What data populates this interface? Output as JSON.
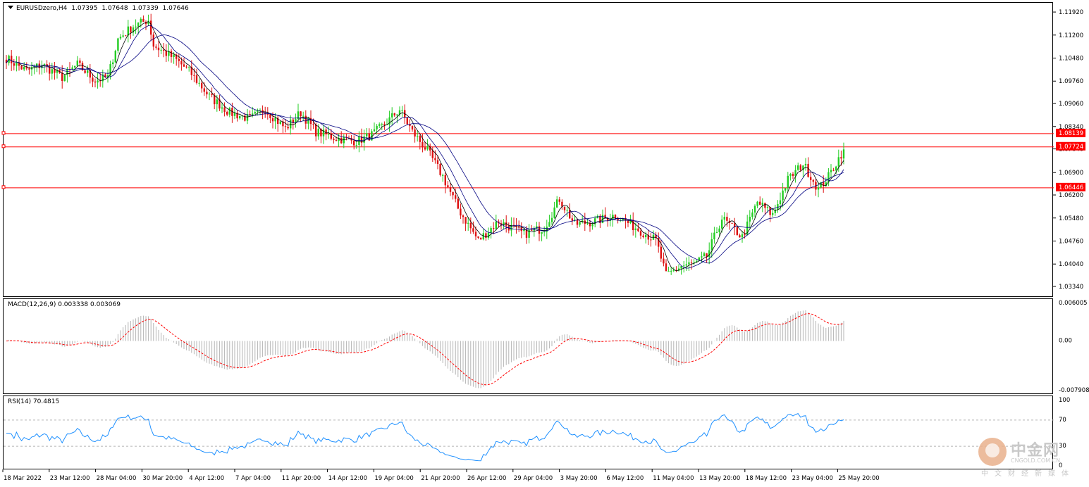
{
  "header": {
    "symbol": "EURUSDzero,H4",
    "open": "1.07395",
    "high": "1.07648",
    "low": "1.07339",
    "close": "1.07646"
  },
  "macd_label": "MACD(12,26,9) 0.003338 0.003069",
  "rsi_label": "RSI(14) 70.4815",
  "price_axis": [
    "1.11920",
    "1.11200",
    "1.10480",
    "1.09760",
    "1.09060",
    "1.08340",
    "1.07640",
    "1.06900",
    "1.06200",
    "1.05480",
    "1.04760",
    "1.04040",
    "1.03340"
  ],
  "macd_axis": [
    "0.006005",
    "0.00",
    "-0.007908"
  ],
  "rsi_axis": [
    "100",
    "70",
    "30",
    "0"
  ],
  "time_labels": [
    "18 Mar 2022",
    "23 Mar 12:00",
    "28 Mar 04:00",
    "30 Mar 20:00",
    "4 Apr 12:00",
    "7 Apr 04:00",
    "11 Apr 20:00",
    "14 Apr 12:00",
    "19 Apr 04:00",
    "21 Apr 20:00",
    "26 Apr 12:00",
    "29 Apr 04:00",
    "3 May 20:00",
    "6 May 12:00",
    "11 May 04:00",
    "13 May 20:00",
    "18 May 12:00",
    "23 May 04:00",
    "25 May 20:00"
  ],
  "price_levels": [
    {
      "label": "1.08139",
      "value": 1.08139
    },
    {
      "label": "1.07724",
      "value": 1.07724
    },
    {
      "label": "1.06446",
      "value": 1.06446
    }
  ],
  "logo": {
    "brand": "中金网",
    "url": "CNGOLD.COM.CN",
    "tag": "中文财经新媒体"
  },
  "colors": {
    "bull": "#22cc22",
    "bear": "#dd1111",
    "level": "#ff0000",
    "ma": "#000080",
    "macd_hist": "#b4b4b4",
    "macd_signal": "#ff0000",
    "rsi": "#1e90ff"
  },
  "chart_data": [
    {
      "type": "candlestick",
      "title": "EURUSDzero,H4",
      "ylim": [
        1.0301,
        1.1223
      ],
      "waypoints": [
        {
          "t": 0,
          "p": 1.105
        },
        {
          "t": 8,
          "p": 1.101
        },
        {
          "t": 14,
          "p": 1.103
        },
        {
          "t": 22,
          "p": 1.099
        },
        {
          "t": 28,
          "p": 1.103
        },
        {
          "t": 35,
          "p": 1.098
        },
        {
          "t": 40,
          "p": 1.099
        },
        {
          "t": 44,
          "p": 1.111
        },
        {
          "t": 50,
          "p": 1.115
        },
        {
          "t": 56,
          "p": 1.117
        },
        {
          "t": 58,
          "p": 1.109
        },
        {
          "t": 66,
          "p": 1.105
        },
        {
          "t": 72,
          "p": 1.101
        },
        {
          "t": 80,
          "p": 1.093
        },
        {
          "t": 88,
          "p": 1.088
        },
        {
          "t": 96,
          "p": 1.086
        },
        {
          "t": 102,
          "p": 1.089
        },
        {
          "t": 110,
          "p": 1.083
        },
        {
          "t": 116,
          "p": 1.088
        },
        {
          "t": 122,
          "p": 1.082
        },
        {
          "t": 130,
          "p": 1.08
        },
        {
          "t": 138,
          "p": 1.079
        },
        {
          "t": 144,
          "p": 1.081
        },
        {
          "t": 150,
          "p": 1.085
        },
        {
          "t": 155,
          "p": 1.089
        },
        {
          "t": 160,
          "p": 1.082
        },
        {
          "t": 166,
          "p": 1.076
        },
        {
          "t": 172,
          "p": 1.068
        },
        {
          "t": 178,
          "p": 1.058
        },
        {
          "t": 186,
          "p": 1.048
        },
        {
          "t": 194,
          "p": 1.054
        },
        {
          "t": 204,
          "p": 1.05
        },
        {
          "t": 212,
          "p": 1.052
        },
        {
          "t": 218,
          "p": 1.061
        },
        {
          "t": 224,
          "p": 1.053
        },
        {
          "t": 232,
          "p": 1.054
        },
        {
          "t": 240,
          "p": 1.056
        },
        {
          "t": 248,
          "p": 1.052
        },
        {
          "t": 256,
          "p": 1.048
        },
        {
          "t": 260,
          "p": 1.037
        },
        {
          "t": 266,
          "p": 1.04
        },
        {
          "t": 272,
          "p": 1.041
        },
        {
          "t": 276,
          "p": 1.043
        },
        {
          "t": 282,
          "p": 1.055
        },
        {
          "t": 290,
          "p": 1.049
        },
        {
          "t": 296,
          "p": 1.06
        },
        {
          "t": 302,
          "p": 1.056
        },
        {
          "t": 308,
          "p": 1.067
        },
        {
          "t": 314,
          "p": 1.072
        },
        {
          "t": 320,
          "p": 1.064
        },
        {
          "t": 324,
          "p": 1.068
        },
        {
          "t": 330,
          "p": 1.0765
        }
      ]
    },
    {
      "type": "line",
      "title": "MACD(12,26,9)",
      "series": [
        {
          "name": "MACD",
          "values": [
            0.003338
          ]
        },
        {
          "name": "Signal",
          "values": [
            0.003069
          ]
        }
      ],
      "ylim": [
        -0.007908,
        0.006005
      ]
    },
    {
      "type": "line",
      "title": "RSI(14)",
      "series": [
        {
          "name": "RSI",
          "values": [
            70.4815
          ]
        }
      ],
      "ylim": [
        0,
        100
      ]
    }
  ]
}
